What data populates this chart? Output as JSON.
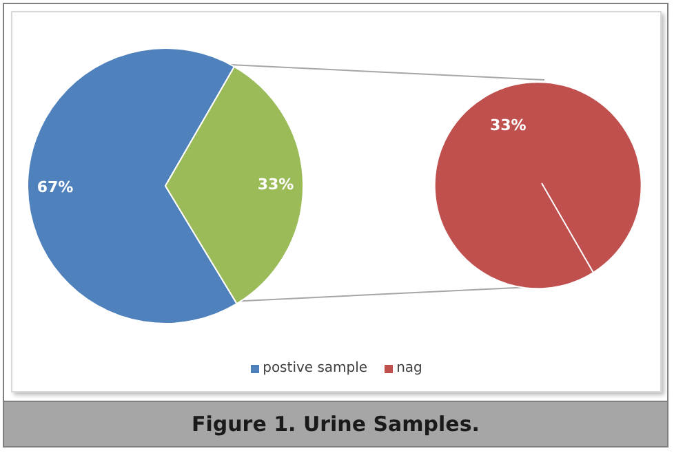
{
  "chart_data": [
    {
      "type": "pie",
      "title": "Figure 1. Urine Samples.",
      "categories": [
        "postive sample",
        null
      ],
      "values": [
        67,
        33
      ],
      "colors": [
        "#4f81bd",
        "#9bbb59"
      ],
      "value_labels": [
        "67%",
        "33%"
      ],
      "legend": "bottom"
    },
    {
      "type": "pie",
      "categories": [
        "nag"
      ],
      "values": [
        33
      ],
      "colors": [
        "#c0504d"
      ],
      "value_labels": [
        "33%"
      ],
      "legend": "bottom"
    }
  ]
}
